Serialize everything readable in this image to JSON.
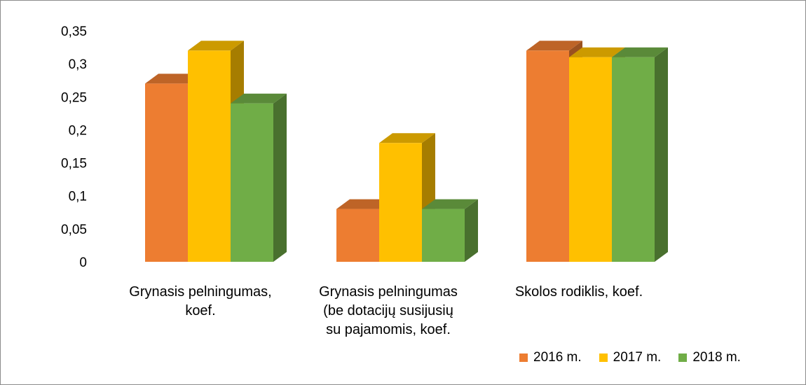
{
  "chart_data": {
    "type": "bar",
    "categories": [
      [
        "Grynasis pelningumas,",
        "koef."
      ],
      [
        "Grynasis pelningumas",
        "(be dotacijų susijusių",
        "su pajamomis, koef."
      ],
      [
        "Skolos rodiklis, koef."
      ]
    ],
    "series": [
      {
        "name": "2016 m.",
        "color": "#ed7d31",
        "values": [
          0.27,
          0.08,
          0.32
        ]
      },
      {
        "name": "2017 m.",
        "color": "#ffc000",
        "values": [
          0.32,
          0.18,
          0.31
        ]
      },
      {
        "name": "2018 m.",
        "color": "#70ad47",
        "values": [
          0.24,
          0.08,
          0.31
        ]
      }
    ],
    "yticks": [
      "0",
      "0,05",
      "0,1",
      "0,15",
      "0,2",
      "0,25",
      "0,3",
      "0,35"
    ],
    "ylim": [
      0,
      0.35
    ],
    "grid": false,
    "legend": "bottom-right",
    "bar_style": "3d-column"
  }
}
